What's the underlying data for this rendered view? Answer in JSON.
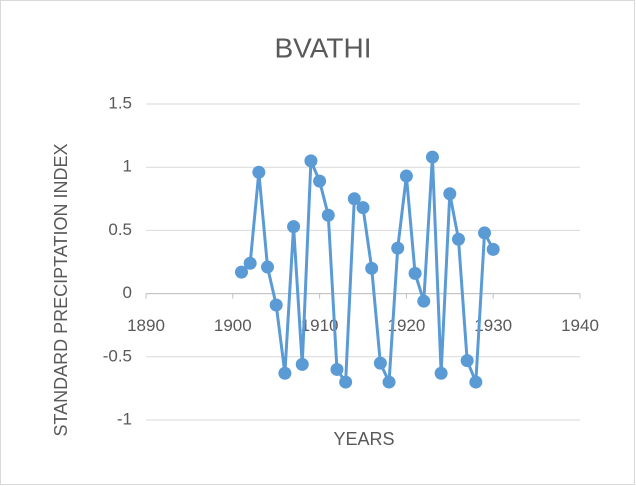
{
  "chart_data": {
    "type": "line",
    "title": "BVATHI",
    "xlabel": "YEARS",
    "ylabel": "STANDARD PRECIPTATION INDEX",
    "x": [
      1901,
      1902,
      1903,
      1904,
      1905,
      1906,
      1907,
      1908,
      1909,
      1910,
      1911,
      1912,
      1913,
      1914,
      1915,
      1916,
      1917,
      1918,
      1919,
      1920,
      1921,
      1922,
      1923,
      1924,
      1925,
      1926,
      1927,
      1928,
      1929,
      1930
    ],
    "series": [
      {
        "color": "#5b9bd5",
        "values": [
          0.17,
          0.24,
          0.96,
          0.21,
          -0.09,
          -0.63,
          0.53,
          -0.56,
          1.05,
          0.89,
          0.62,
          -0.6,
          -0.7,
          0.75,
          0.68,
          0.2,
          -0.55,
          -0.7,
          0.36,
          0.93,
          0.16,
          -0.06,
          1.08,
          -0.63,
          0.79,
          0.43,
          -0.53,
          -0.7,
          0.48,
          0.35
        ]
      }
    ],
    "xlim": [
      1890,
      1940
    ],
    "xticks": [
      1890,
      1900,
      1910,
      1920,
      1930,
      1940
    ],
    "ylim": [
      -1,
      1.5
    ],
    "yticks": [
      -1,
      -0.5,
      0,
      0.5,
      1,
      1.5
    ],
    "grid": true
  }
}
